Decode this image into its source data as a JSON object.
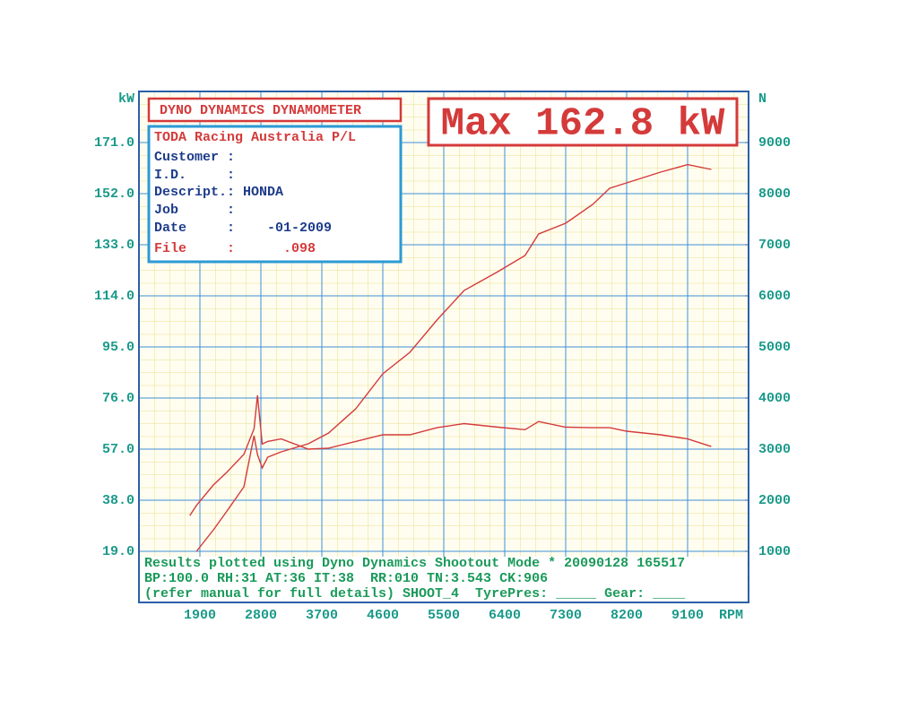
{
  "chart_data": {
    "type": "line",
    "header": "DYNO DYNAMICS DYNAMOMETER",
    "annotation": "Max 162.8 kW",
    "info_title": "TODA Racing Australia P/L",
    "info_lines": [
      "Customer :",
      "I.D.     :",
      "Descript.: HONDA",
      "Job      :",
      "Date     :    -01-2009"
    ],
    "info_file": "File     :      .098",
    "footer": [
      "Results plotted using Dyno Dynamics Shootout Mode * 20090128 165517",
      "BP:100.0 RH:31 AT:36 IT:38  RR:010 TN:3.543 CK:906",
      "(refer manual for full details) SHOOT_4  TyrePres: _____ Gear: ____"
    ],
    "y_label": "kW",
    "y2_label": "N",
    "x_label": "RPM",
    "xlim": [
      1000,
      10000
    ],
    "xticks": [
      1900,
      2800,
      3700,
      4600,
      5500,
      6400,
      7300,
      8200,
      9100
    ],
    "ylim": [
      0,
      190
    ],
    "yticks": [
      {
        "value": 19,
        "label": "19.0"
      },
      {
        "value": 38,
        "label": "38.0"
      },
      {
        "value": 57,
        "label": "57.0"
      },
      {
        "value": 76,
        "label": "76.0"
      },
      {
        "value": 95,
        "label": "95.0"
      },
      {
        "value": 114,
        "label": "114.0"
      },
      {
        "value": 133,
        "label": "133.0"
      },
      {
        "value": 152,
        "label": "152.0"
      },
      {
        "value": 171,
        "label": "171.0"
      }
    ],
    "y2lim": [
      0,
      10000
    ],
    "y2ticks": [
      1000,
      2000,
      3000,
      4000,
      5000,
      6000,
      7000,
      8000,
      9000
    ],
    "grid": true,
    "x": [
      1750,
      1850,
      2100,
      2300,
      2550,
      2700,
      2750,
      2820,
      2900,
      3100,
      3500,
      3800,
      4200,
      4600,
      5000,
      5400,
      5800,
      6300,
      6700,
      6900,
      7300,
      7700,
      7950,
      8200,
      8700,
      9100,
      9450
    ],
    "series": [
      {
        "color": "#d43a3a",
        "values": [
          null,
          19,
          27,
          34,
          43,
          62,
          55,
          50,
          54,
          56,
          59,
          63,
          72,
          85,
          93,
          105,
          116,
          123,
          129,
          137,
          141,
          148,
          154,
          156,
          160,
          162.8,
          161
        ]
      },
      {
        "color": "#d43a3a",
        "axis": "y2",
        "values": [
          1700,
          1900,
          2300,
          2550,
          2900,
          3400,
          4050,
          3100,
          3150,
          3200,
          3000,
          3020,
          3150,
          3280,
          3280,
          3420,
          3500,
          3430,
          3380,
          3540,
          3430,
          3420,
          3420,
          3350,
          3280,
          3200,
          3050
        ]
      }
    ]
  }
}
